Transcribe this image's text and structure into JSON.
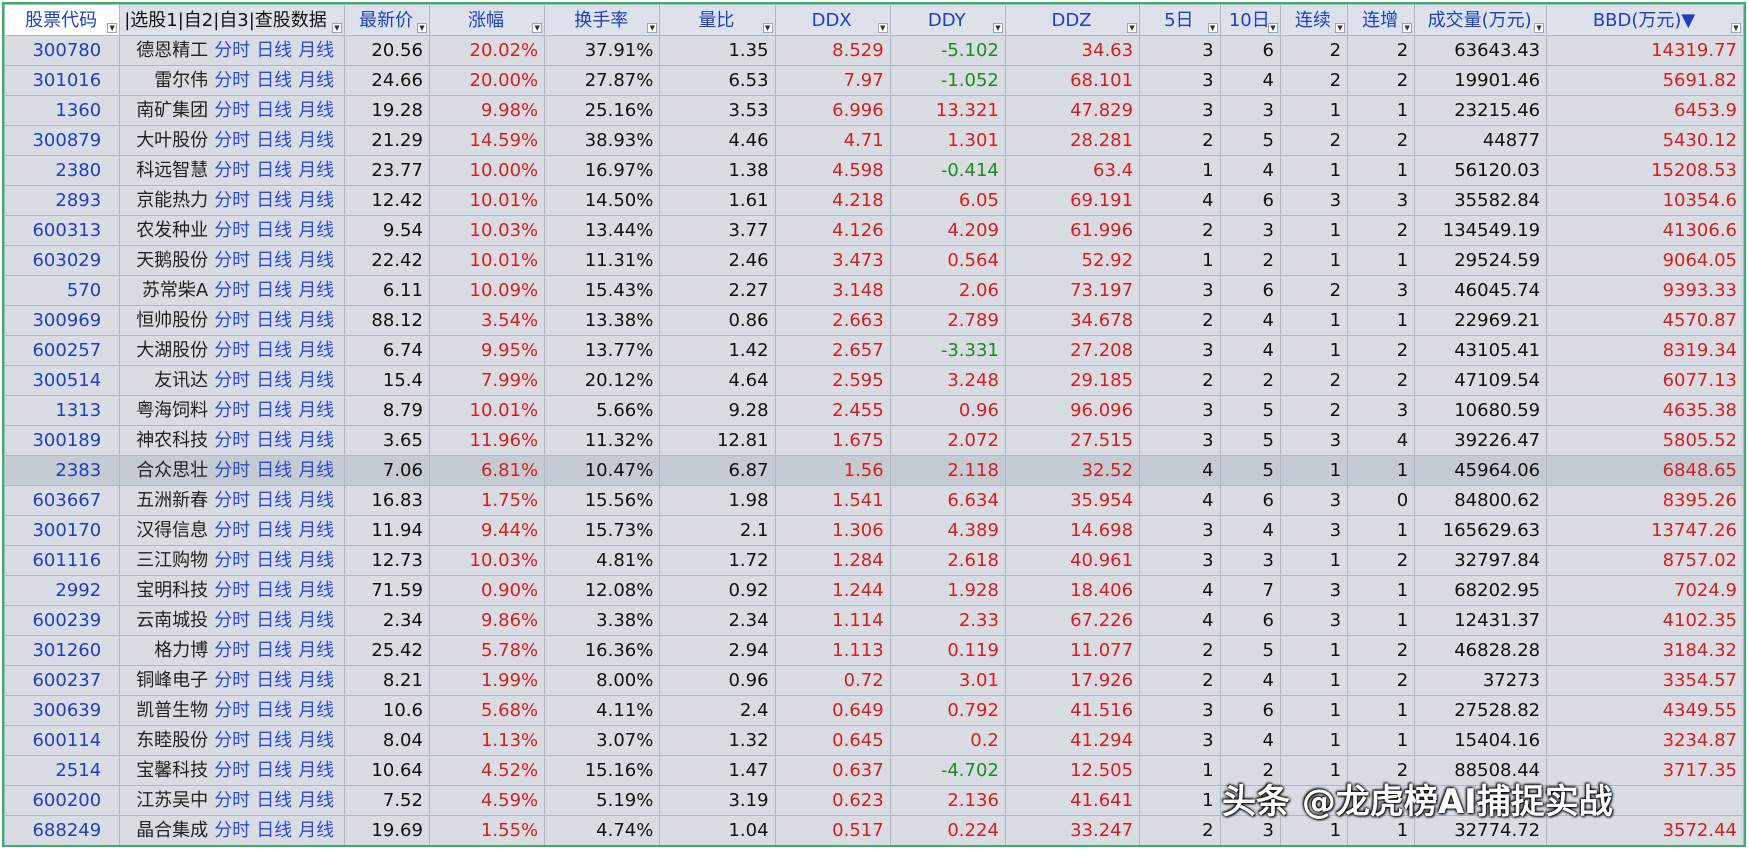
{
  "headers": {
    "code": "股票代码",
    "name": "|选股1|自2|自3|查股数据",
    "price": "最新价",
    "change": "涨幅",
    "turnover": "换手率",
    "vol_ratio": "量比",
    "ddx": "DDX",
    "ddy": "DDY",
    "ddz": "DDZ",
    "d5": "5日",
    "d10": "10日",
    "streak": "连续",
    "inc": "连增",
    "volume": "成交量(万元)",
    "bbd": "BBD(万元)▼"
  },
  "links": {
    "fenshi": "分时",
    "rixian": "日线",
    "yuexian": "月线"
  },
  "colors": {
    "up": "#d41f1f",
    "down": "#1e8a1e",
    "code": "#1f3fbf",
    "border": "#3cae6b"
  },
  "rows": [
    {
      "code": "300780",
      "name": "德恩精工",
      "price": "20.56",
      "change": "20.02%",
      "turnover": "37.91%",
      "vol_ratio": "1.35",
      "ddx": "8.529",
      "ddy": "-5.102",
      "ddz": "34.63",
      "d5": "3",
      "d10": "6",
      "streak": "2",
      "inc": "2",
      "volume": "63643.43",
      "bbd": "14319.77"
    },
    {
      "code": "301016",
      "name": "雷尔伟",
      "price": "24.66",
      "change": "20.00%",
      "turnover": "27.87%",
      "vol_ratio": "6.53",
      "ddx": "7.97",
      "ddy": "-1.052",
      "ddz": "68.101",
      "d5": "3",
      "d10": "4",
      "streak": "2",
      "inc": "2",
      "volume": "19901.46",
      "bbd": "5691.82"
    },
    {
      "code": "1360",
      "name": "南矿集团",
      "price": "19.28",
      "change": "9.98%",
      "turnover": "25.16%",
      "vol_ratio": "3.53",
      "ddx": "6.996",
      "ddy": "13.321",
      "ddz": "47.829",
      "d5": "3",
      "d10": "3",
      "streak": "1",
      "inc": "1",
      "volume": "23215.46",
      "bbd": "6453.9"
    },
    {
      "code": "300879",
      "name": "大叶股份",
      "price": "21.29",
      "change": "14.59%",
      "turnover": "38.93%",
      "vol_ratio": "4.46",
      "ddx": "4.71",
      "ddy": "1.301",
      "ddz": "28.281",
      "d5": "2",
      "d10": "5",
      "streak": "2",
      "inc": "2",
      "volume": "44877",
      "bbd": "5430.12"
    },
    {
      "code": "2380",
      "name": "科远智慧",
      "price": "23.77",
      "change": "10.00%",
      "turnover": "16.97%",
      "vol_ratio": "1.38",
      "ddx": "4.598",
      "ddy": "-0.414",
      "ddz": "63.4",
      "d5": "1",
      "d10": "4",
      "streak": "1",
      "inc": "1",
      "volume": "56120.03",
      "bbd": "15208.53"
    },
    {
      "code": "2893",
      "name": "京能热力",
      "price": "12.42",
      "change": "10.01%",
      "turnover": "14.50%",
      "vol_ratio": "1.61",
      "ddx": "4.218",
      "ddy": "6.05",
      "ddz": "69.191",
      "d5": "4",
      "d10": "6",
      "streak": "3",
      "inc": "3",
      "volume": "35582.84",
      "bbd": "10354.6"
    },
    {
      "code": "600313",
      "name": "农发种业",
      "price": "9.54",
      "change": "10.03%",
      "turnover": "13.44%",
      "vol_ratio": "3.77",
      "ddx": "4.126",
      "ddy": "4.209",
      "ddz": "61.996",
      "d5": "2",
      "d10": "3",
      "streak": "1",
      "inc": "2",
      "volume": "134549.19",
      "bbd": "41306.6"
    },
    {
      "code": "603029",
      "name": "天鹅股份",
      "price": "22.42",
      "change": "10.01%",
      "turnover": "11.31%",
      "vol_ratio": "2.46",
      "ddx": "3.473",
      "ddy": "0.564",
      "ddz": "52.92",
      "d5": "1",
      "d10": "2",
      "streak": "1",
      "inc": "1",
      "volume": "29524.59",
      "bbd": "9064.05"
    },
    {
      "code": "570",
      "name": "苏常柴A",
      "price": "6.11",
      "change": "10.09%",
      "turnover": "15.43%",
      "vol_ratio": "2.27",
      "ddx": "3.148",
      "ddy": "2.06",
      "ddz": "73.197",
      "d5": "3",
      "d10": "6",
      "streak": "2",
      "inc": "3",
      "volume": "46045.74",
      "bbd": "9393.33"
    },
    {
      "code": "300969",
      "name": "恒帅股份",
      "price": "88.12",
      "change": "3.54%",
      "turnover": "13.38%",
      "vol_ratio": "0.86",
      "ddx": "2.663",
      "ddy": "2.789",
      "ddz": "34.678",
      "d5": "2",
      "d10": "4",
      "streak": "1",
      "inc": "1",
      "volume": "22969.21",
      "bbd": "4570.87"
    },
    {
      "code": "600257",
      "name": "大湖股份",
      "price": "6.74",
      "change": "9.95%",
      "turnover": "13.77%",
      "vol_ratio": "1.42",
      "ddx": "2.657",
      "ddy": "-3.331",
      "ddz": "27.208",
      "d5": "3",
      "d10": "4",
      "streak": "1",
      "inc": "2",
      "volume": "43105.41",
      "bbd": "8319.34"
    },
    {
      "code": "300514",
      "name": "友讯达",
      "price": "15.4",
      "change": "7.99%",
      "turnover": "20.12%",
      "vol_ratio": "4.64",
      "ddx": "2.595",
      "ddy": "3.248",
      "ddz": "29.185",
      "d5": "2",
      "d10": "2",
      "streak": "2",
      "inc": "2",
      "volume": "47109.54",
      "bbd": "6077.13"
    },
    {
      "code": "1313",
      "name": "粤海饲料",
      "price": "8.79",
      "change": "10.01%",
      "turnover": "5.66%",
      "vol_ratio": "9.28",
      "ddx": "2.455",
      "ddy": "0.96",
      "ddz": "96.096",
      "d5": "3",
      "d10": "5",
      "streak": "2",
      "inc": "3",
      "volume": "10680.59",
      "bbd": "4635.38"
    },
    {
      "code": "300189",
      "name": "神农科技",
      "price": "3.65",
      "change": "11.96%",
      "turnover": "11.32%",
      "vol_ratio": "12.81",
      "ddx": "1.675",
      "ddy": "2.072",
      "ddz": "27.515",
      "d5": "3",
      "d10": "5",
      "streak": "3",
      "inc": "4",
      "volume": "39226.47",
      "bbd": "5805.52"
    },
    {
      "code": "2383",
      "name": "合众思壮",
      "price": "7.06",
      "change": "6.81%",
      "turnover": "10.47%",
      "vol_ratio": "6.87",
      "ddx": "1.56",
      "ddy": "2.118",
      "ddz": "32.52",
      "d5": "4",
      "d10": "5",
      "streak": "1",
      "inc": "1",
      "volume": "45964.06",
      "bbd": "6848.65"
    },
    {
      "code": "603667",
      "name": "五洲新春",
      "price": "16.83",
      "change": "1.75%",
      "turnover": "15.56%",
      "vol_ratio": "1.98",
      "ddx": "1.541",
      "ddy": "6.634",
      "ddz": "35.954",
      "d5": "4",
      "d10": "6",
      "streak": "3",
      "inc": "0",
      "volume": "84800.62",
      "bbd": "8395.26"
    },
    {
      "code": "300170",
      "name": "汉得信息",
      "price": "11.94",
      "change": "9.44%",
      "turnover": "15.73%",
      "vol_ratio": "2.1",
      "ddx": "1.306",
      "ddy": "4.389",
      "ddz": "14.698",
      "d5": "3",
      "d10": "4",
      "streak": "3",
      "inc": "1",
      "volume": "165629.63",
      "bbd": "13747.26"
    },
    {
      "code": "601116",
      "name": "三江购物",
      "price": "12.73",
      "change": "10.03%",
      "turnover": "4.81%",
      "vol_ratio": "1.72",
      "ddx": "1.284",
      "ddy": "2.618",
      "ddz": "40.961",
      "d5": "3",
      "d10": "3",
      "streak": "1",
      "inc": "2",
      "volume": "32797.84",
      "bbd": "8757.02"
    },
    {
      "code": "2992",
      "name": "宝明科技",
      "price": "71.59",
      "change": "0.90%",
      "turnover": "12.08%",
      "vol_ratio": "0.92",
      "ddx": "1.244",
      "ddy": "1.928",
      "ddz": "18.406",
      "d5": "4",
      "d10": "7",
      "streak": "3",
      "inc": "1",
      "volume": "68202.95",
      "bbd": "7024.9"
    },
    {
      "code": "600239",
      "name": "云南城投",
      "price": "2.34",
      "change": "9.86%",
      "turnover": "3.38%",
      "vol_ratio": "2.34",
      "ddx": "1.114",
      "ddy": "2.33",
      "ddz": "67.226",
      "d5": "4",
      "d10": "6",
      "streak": "3",
      "inc": "1",
      "volume": "12431.37",
      "bbd": "4102.35"
    },
    {
      "code": "301260",
      "name": "格力博",
      "price": "25.42",
      "change": "5.78%",
      "turnover": "16.36%",
      "vol_ratio": "2.94",
      "ddx": "1.113",
      "ddy": "0.119",
      "ddz": "11.077",
      "d5": "2",
      "d10": "5",
      "streak": "1",
      "inc": "2",
      "volume": "46828.28",
      "bbd": "3184.32"
    },
    {
      "code": "600237",
      "name": "铜峰电子",
      "price": "8.21",
      "change": "1.99%",
      "turnover": "8.00%",
      "vol_ratio": "0.96",
      "ddx": "0.72",
      "ddy": "3.01",
      "ddz": "17.926",
      "d5": "2",
      "d10": "4",
      "streak": "1",
      "inc": "2",
      "volume": "37273",
      "bbd": "3354.57"
    },
    {
      "code": "300639",
      "name": "凯普生物",
      "price": "10.6",
      "change": "5.68%",
      "turnover": "4.11%",
      "vol_ratio": "2.4",
      "ddx": "0.649",
      "ddy": "0.792",
      "ddz": "41.516",
      "d5": "3",
      "d10": "6",
      "streak": "1",
      "inc": "1",
      "volume": "27528.82",
      "bbd": "4349.55"
    },
    {
      "code": "600114",
      "name": "东睦股份",
      "price": "8.04",
      "change": "1.13%",
      "turnover": "3.07%",
      "vol_ratio": "1.32",
      "ddx": "0.645",
      "ddy": "0.2",
      "ddz": "41.294",
      "d5": "3",
      "d10": "4",
      "streak": "1",
      "inc": "1",
      "volume": "15404.16",
      "bbd": "3234.87"
    },
    {
      "code": "2514",
      "name": "宝馨科技",
      "price": "10.64",
      "change": "4.52%",
      "turnover": "15.16%",
      "vol_ratio": "1.47",
      "ddx": "0.637",
      "ddy": "-4.702",
      "ddz": "12.505",
      "d5": "1",
      "d10": "2",
      "streak": "1",
      "inc": "2",
      "volume": "88508.44",
      "bbd": "3717.35"
    },
    {
      "code": "600200",
      "name": "江苏吴中",
      "price": "7.52",
      "change": "4.59%",
      "turnover": "5.19%",
      "vol_ratio": "3.19",
      "ddx": "0.623",
      "ddy": "2.136",
      "ddz": "41.641",
      "d5": "1",
      "d10": "",
      "streak": "",
      "inc": "",
      "volume": "",
      "bbd": ""
    },
    {
      "code": "688249",
      "name": "晶合集成",
      "price": "19.69",
      "change": "1.55%",
      "turnover": "4.74%",
      "vol_ratio": "1.04",
      "ddx": "0.517",
      "ddy": "0.224",
      "ddz": "33.247",
      "d5": "2",
      "d10": "3",
      "streak": "1",
      "inc": "1",
      "volume": "32774.72",
      "bbd": "3572.44"
    }
  ],
  "watermark": "头条 @龙虎榜AI捕捉实战"
}
